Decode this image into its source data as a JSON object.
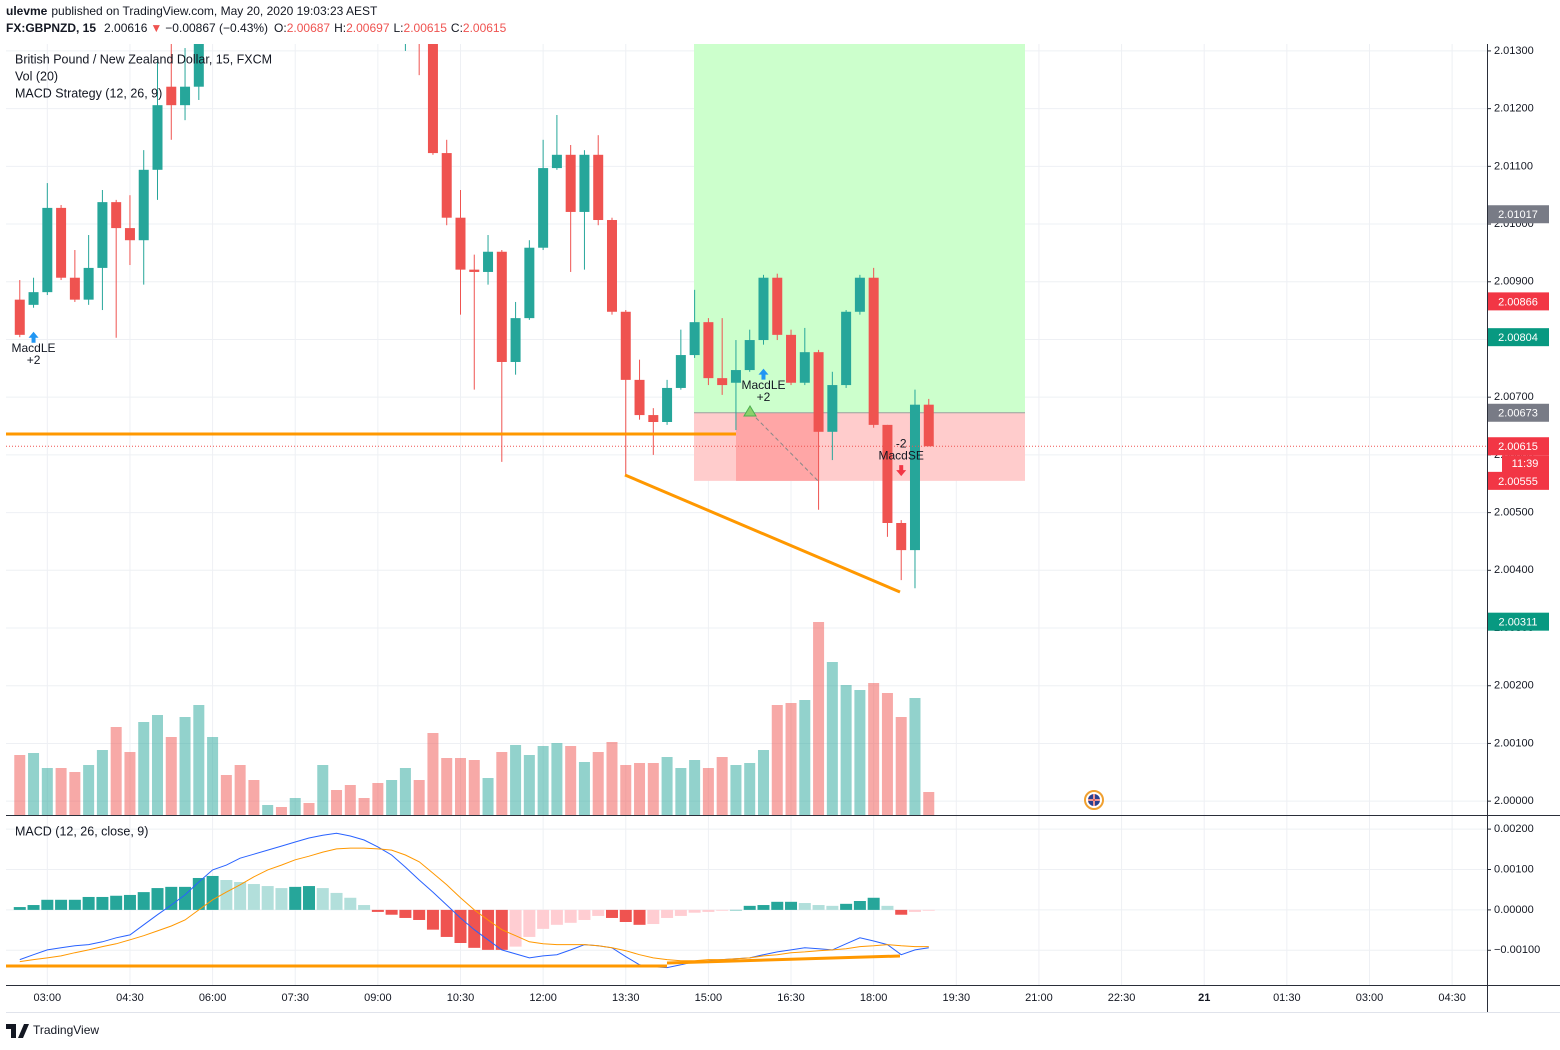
{
  "header": {
    "author": "ulevme",
    "published": "published on TradingView.com, May 20, 2020 19:03:23 AEST",
    "symbol": "FX:GBPNZD, 15",
    "last": "2.00616",
    "arrow": "▼",
    "change": "−0.00867 (−0.43%)",
    "ohlc": [
      {
        "key": "O:",
        "value": "2.00687"
      },
      {
        "key": "H:",
        "value": "2.00697"
      },
      {
        "key": "L:",
        "value": "2.00615"
      },
      {
        "key": "C:",
        "value": "2.00615"
      }
    ]
  },
  "footer": {
    "brand": "TradingView"
  },
  "chart_data": [
    {
      "type": "candlestick",
      "title": "British Pound / New Zealand Dollar, 15, FXCM",
      "x": [
        150,
        165,
        180,
        195,
        210,
        225,
        240,
        255,
        270,
        285,
        300,
        315,
        330,
        345,
        360,
        375,
        390,
        405,
        420,
        435,
        450,
        465,
        480,
        495,
        510,
        525,
        540,
        555,
        570,
        585,
        600,
        615,
        630,
        645,
        660,
        675,
        690,
        705,
        720,
        735,
        750,
        765,
        780,
        795,
        810,
        825,
        840,
        855,
        870,
        885,
        900,
        915,
        930,
        945,
        960,
        975,
        990,
        1005,
        1020,
        1035,
        1050,
        1065,
        1080,
        1095,
        1110,
        1125,
        1140
      ],
      "open": [
        2.00869,
        2.0086,
        2.00882,
        2.01028,
        2.00907,
        2.00869,
        2.00924,
        2.01038,
        2.00993,
        2.00972,
        2.01094,
        2.01238,
        2.01206,
        2.01238,
        2.0133,
        2.01395,
        2.0137,
        2.01352,
        2.0134,
        2.01372,
        2.01365,
        2.01388,
        2.0138,
        2.0142,
        2.014,
        2.01385,
        2.01372,
        2.01355,
        2.01368,
        2.01375,
        2.0133,
        2.01123,
        2.01011,
        2.00921,
        2.00917,
        2.00952,
        2.00761,
        2.00837,
        2.00959,
        2.01097,
        2.0112,
        2.01021,
        2.0112,
        2.01007,
        2.00848,
        2.0073,
        2.00669,
        2.00657,
        2.00716,
        2.00773,
        2.0083,
        2.00733,
        2.00725,
        2.00747,
        2.00799,
        2.00907,
        2.00808,
        2.00725,
        2.00778,
        2.0064,
        2.00721,
        2.00848,
        2.00907,
        2.00652,
        2.00482,
        2.00435,
        2.00687
      ],
      "high": [
        2.00903,
        2.00907,
        2.01071,
        2.01033,
        2.00955,
        2.00981,
        2.01059,
        2.01042,
        2.0105,
        2.01128,
        2.01284,
        2.01319,
        2.01305,
        2.01354,
        2.0141,
        2.0142,
        2.01385,
        2.01362,
        2.0138,
        2.01378,
        2.01395,
        2.01394,
        2.01432,
        2.01428,
        2.01405,
        2.0139,
        2.0138,
        2.01375,
        2.01382,
        2.0138,
        2.0134,
        2.01146,
        2.01059,
        2.00947,
        2.00981,
        2.00955,
        2.00865,
        2.00972,
        2.01146,
        2.01189,
        2.01137,
        2.01128,
        2.01154,
        2.01011,
        2.00851,
        2.00765,
        2.00681,
        2.0073,
        2.00817,
        2.00886,
        2.00837,
        2.00837,
        2.00799,
        2.00817,
        2.00912,
        2.00914,
        2.00817,
        2.0082,
        2.00782,
        2.00744,
        2.00851,
        2.00912,
        2.00924,
        2.00652,
        2.00487,
        2.00713,
        2.00697
      ],
      "low": [
        2.00804,
        2.00855,
        2.00877,
        2.00903,
        2.00865,
        2.0086,
        2.00851,
        2.00803,
        2.00929,
        2.00895,
        2.01042,
        2.01146,
        2.0118,
        2.01215,
        2.01315,
        2.0136,
        2.0134,
        2.0133,
        2.01335,
        2.01358,
        2.0136,
        2.01372,
        2.01376,
        2.01392,
        2.0137,
        2.01362,
        2.01345,
        2.0134,
        2.013,
        2.01258,
        2.0112,
        2.00998,
        2.00843,
        2.00713,
        2.00895,
        2.00588,
        2.00739,
        2.00834,
        2.00955,
        2.01094,
        2.00917,
        2.00921,
        2.00998,
        2.00843,
        2.00565,
        2.00661,
        2.006,
        2.00652,
        2.00713,
        2.00768,
        2.00721,
        2.00704,
        2.00643,
        2.00744,
        2.00791,
        2.00799,
        2.00721,
        2.00721,
        2.00505,
        2.00591,
        2.00716,
        2.00843,
        2.00647,
        2.00458,
        2.00383,
        2.00369,
        2.00615
      ],
      "close": [
        2.00808,
        2.00882,
        2.01028,
        2.00907,
        2.00869,
        2.00924,
        2.01038,
        2.00993,
        2.00972,
        2.01094,
        2.01206,
        2.01206,
        2.01238,
        2.0133,
        2.01395,
        2.0137,
        2.01352,
        2.0134,
        2.01372,
        2.01365,
        2.01388,
        2.0138,
        2.0142,
        2.014,
        2.01385,
        2.01372,
        2.01355,
        2.01368,
        2.01375,
        2.0133,
        2.01123,
        2.01011,
        2.00921,
        2.00917,
        2.00952,
        2.00761,
        2.00837,
        2.00959,
        2.01097,
        2.0112,
        2.01021,
        2.0112,
        2.01007,
        2.00848,
        2.0073,
        2.00669,
        2.00657,
        2.00716,
        2.00773,
        2.0083,
        2.00733,
        2.00721,
        2.00747,
        2.00799,
        2.00907,
        2.00808,
        2.00725,
        2.00778,
        2.0064,
        2.00721,
        2.00848,
        2.00907,
        2.00652,
        2.00482,
        2.00435,
        2.00687,
        2.00615
      ],
      "up_color": "#26a69a",
      "down_color": "#ef5350",
      "ylim": [
        1.99976,
        2.01312
      ],
      "yticks": [
        {
          "value": 2.0,
          "label": "2.00000"
        },
        {
          "value": 2.001,
          "label": "2.00100"
        },
        {
          "value": 2.002,
          "label": "2.00200"
        },
        {
          "value": 2.003,
          "label": "2.00300"
        },
        {
          "value": 2.004,
          "label": "2.00400"
        },
        {
          "value": 2.005,
          "label": "2.00500"
        },
        {
          "value": 2.006,
          "label": "2.00600"
        },
        {
          "value": 2.007,
          "label": "2.00700"
        },
        {
          "value": 2.008,
          "label": "2.00800"
        },
        {
          "value": 2.009,
          "label": "2.00900"
        },
        {
          "value": 2.01,
          "label": "2.01000"
        },
        {
          "value": 2.011,
          "label": "2.01100"
        },
        {
          "value": 2.012,
          "label": "2.01200"
        },
        {
          "value": 2.013,
          "label": "2.01300"
        }
      ],
      "xlim": [
        135,
        1748
      ],
      "xticks": [
        {
          "value": 180,
          "label": "03:00"
        },
        {
          "value": 270,
          "label": "04:30"
        },
        {
          "value": 360,
          "label": "06:00"
        },
        {
          "value": 450,
          "label": "07:30"
        },
        {
          "value": 540,
          "label": "09:00"
        },
        {
          "value": 630,
          "label": "10:30"
        },
        {
          "value": 720,
          "label": "12:00"
        },
        {
          "value": 810,
          "label": "13:30"
        },
        {
          "value": 900,
          "label": "15:00"
        },
        {
          "value": 990,
          "label": "16:30"
        },
        {
          "value": 1080,
          "label": "18:00"
        },
        {
          "value": 1170,
          "label": "19:30"
        },
        {
          "value": 1260,
          "label": "21:00"
        },
        {
          "value": 1350,
          "label": "22:30"
        },
        {
          "value": 1440,
          "label": "21"
        },
        {
          "value": 1530,
          "label": "01:30"
        },
        {
          "value": 1620,
          "label": "03:00"
        },
        {
          "value": 1710,
          "label": "04:30"
        }
      ],
      "grid": true,
      "volume": {
        "name": "Vol (20)",
        "ylim": [
          0,
          400
        ],
        "values": [
          60,
          62,
          47,
          47,
          43,
          50,
          65,
          88,
          63,
          93,
          100,
          78,
          98,
          110,
          78,
          40,
          50,
          35,
          10,
          8,
          17,
          12,
          50,
          25,
          30,
          17,
          32,
          35,
          47,
          35,
          82,
          57,
          57,
          55,
          37,
          63,
          70,
          60,
          69,
          72,
          69,
          53,
          63,
          73,
          50,
          52,
          52,
          58,
          47,
          55,
          47,
          58,
          50,
          52,
          65,
          110,
          112,
          115,
          193,
          153,
          130,
          125,
          132,
          122,
          98,
          117,
          23
        ]
      },
      "strategy": {
        "name": "MACD Strategy (12, 26, 9)",
        "signals": [
          {
            "x": 165,
            "side": "long",
            "label": "MacdLE",
            "qty": "+2"
          },
          {
            "x": 960,
            "side": "long",
            "label": "MacdLE",
            "qty": "+2"
          },
          {
            "x": 1110,
            "side": "short",
            "label": "MacdSE",
            "qty": "-2"
          }
        ]
      },
      "price_labels": [
        {
          "value": 2.01017,
          "color": "#787b86"
        },
        {
          "value": 2.00866,
          "color": "#f23645"
        },
        {
          "value": 2.00804,
          "color": "#089981"
        },
        {
          "value": 2.00673,
          "color": "#787b86"
        },
        {
          "value": 2.00615,
          "color": "#f23645"
        },
        {
          "value": 2.00555,
          "color": "#f23645"
        },
        {
          "value": 2.00311,
          "color": "#089981"
        }
      ],
      "countdown": "11:39"
    },
    {
      "type": "macd",
      "title": "MACD (12, 26, close, 9)",
      "ylim": [
        -0.00186,
        0.0023
      ],
      "yticks": [
        {
          "value": -0.001,
          "label": "−0.00100"
        },
        {
          "value": 0,
          "label": "0.00000"
        },
        {
          "value": 0.001,
          "label": "0.00100"
        },
        {
          "value": 0.002,
          "label": "0.00200"
        }
      ],
      "histogram": {
        "colors": [
          "#26a69a",
          "#b2dfdb",
          "#ef5350",
          "#ffcdd2"
        ],
        "values": [
          7e-05,
          0.00012,
          0.00025,
          0.00025,
          0.00025,
          0.00032,
          0.00032,
          0.00035,
          0.00037,
          0.00044,
          0.00054,
          0.00057,
          0.00057,
          0.00079,
          0.00084,
          0.00074,
          0.00069,
          0.00064,
          0.00059,
          0.00054,
          0.00057,
          0.00059,
          0.00054,
          0.00042,
          0.0003,
          0.00012,
          -5e-05,
          -0.00012,
          -0.0002,
          -0.00025,
          -0.00049,
          -0.00067,
          -0.00082,
          -0.00094,
          -0.00099,
          -0.00099,
          -0.00091,
          -0.00067,
          -0.00047,
          -0.00037,
          -0.00032,
          -0.00025,
          -0.00015,
          -0.0002,
          -0.0003,
          -0.00037,
          -0.00035,
          -0.0002,
          -0.00015,
          -7e-05,
          -5e-05,
          -2e-05,
          0,
          0.0001,
          0.00012,
          0.0002,
          0.0002,
          0.00017,
          0.00012,
          0.0001,
          0.00015,
          0.00022,
          0.0003,
          0.0001,
          -0.00012,
          -5e-05,
          -2e-05
        ]
      },
      "series": [
        {
          "color": "#2962ff",
          "values": [
            -0.00123,
            -0.00111,
            -0.00099,
            -0.00094,
            -0.00089,
            -0.00086,
            -0.00079,
            -0.00069,
            -0.00062,
            -0.00037,
            -0.00012,
            0.00012,
            0.00037,
            0.00069,
            0.00099,
            0.00111,
            0.00128,
            0.00138,
            0.00148,
            0.00158,
            0.00168,
            0.00178,
            0.00185,
            0.0019,
            0.00183,
            0.00173,
            0.00156,
            0.00136,
            0.00106,
            0.00074,
            0.00044,
            0.00012,
            -0.0002,
            -0.00049,
            -0.00074,
            -0.00099,
            -0.00109,
            -0.00119,
            -0.00114,
            -0.00111,
            -0.00099,
            -0.00086,
            -0.00089,
            -0.00094,
            -0.00116,
            -0.00136,
            -0.00141,
            -0.00143,
            -0.00136,
            -0.00128,
            -0.00126,
            -0.00123,
            -0.00121,
            -0.00119,
            -0.00111,
            -0.00104,
            -0.00099,
            -0.00094,
            -0.00096,
            -0.00099,
            -0.00084,
            -0.00069,
            -0.00077,
            -0.00086,
            -0.00111,
            -0.00099,
            -0.00094
          ]
        },
        {
          "color": "#ff9800",
          "values": [
            -0.00128,
            -0.00123,
            -0.00119,
            -0.00114,
            -0.00106,
            -0.00099,
            -0.00091,
            -0.00084,
            -0.00074,
            -0.00064,
            -0.00052,
            -0.0004,
            -0.00025,
            0,
            0.00025,
            0.00044,
            0.00062,
            0.00082,
            0.00099,
            0.00111,
            0.00124,
            0.00133,
            0.00143,
            0.00151,
            0.00153,
            0.00153,
            0.00151,
            0.00148,
            0.00136,
            0.00119,
            0.00091,
            0.00062,
            0.0003,
            0,
            -0.00025,
            -0.00049,
            -0.00064,
            -0.00079,
            -0.00084,
            -0.00086,
            -0.00086,
            -0.00086,
            -0.00089,
            -0.00094,
            -0.00101,
            -0.00111,
            -0.00119,
            -0.00123,
            -0.00126,
            -0.00126,
            -0.00123,
            -0.00123,
            -0.00121,
            -0.00119,
            -0.00114,
            -0.00111,
            -0.00106,
            -0.00104,
            -0.00101,
            -0.00099,
            -0.00096,
            -0.00091,
            -0.00089,
            -0.00086,
            -0.00089,
            -0.00091,
            -0.00091
          ]
        }
      ]
    }
  ]
}
